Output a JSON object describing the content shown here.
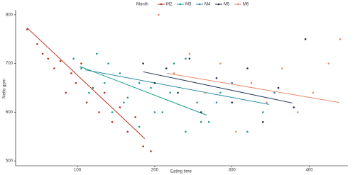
{
  "chart_data": {
    "type": "scatter",
    "legend_title": "Month",
    "xlabel": "Eating time",
    "ylabel": "Netto gpm",
    "xlim": [
      20,
      450
    ],
    "xticks": [
      100,
      200,
      300,
      400
    ],
    "ylim": [
      490,
      810
    ],
    "yticks": [
      500,
      600,
      700,
      800
    ],
    "legend_position": "top",
    "grid": false,
    "series": [
      {
        "name": "M2",
        "color": "#b5321e",
        "x": [
          35,
          48,
          55,
          62,
          70,
          78,
          85,
          92,
          98,
          105,
          112,
          120,
          128,
          135,
          145,
          155,
          165,
          175,
          185,
          195
        ],
        "values": [
          770,
          740,
          720,
          710,
          690,
          705,
          640,
          680,
          660,
          700,
          620,
          650,
          600,
          640,
          580,
          610,
          560,
          590,
          530,
          520
        ],
        "trend": {
          "x": [
            35,
            187
          ],
          "values": [
            773,
            546
          ]
        }
      },
      {
        "name": "M3",
        "color": "#16a08a",
        "x": [
          95,
          105,
          115,
          125,
          135,
          145,
          155,
          165,
          180,
          195,
          210,
          225,
          240,
          255,
          270,
          285
        ],
        "values": [
          710,
          690,
          640,
          720,
          660,
          600,
          680,
          630,
          570,
          650,
          600,
          700,
          560,
          620,
          580,
          640
        ],
        "trend": {
          "x": [
            103,
            267
          ],
          "values": [
            694,
            594
          ]
        }
      },
      {
        "name": "M4",
        "color": "#2a8ca8",
        "x": [
          105,
          120,
          140,
          160,
          180,
          200,
          220,
          240,
          260,
          280,
          300,
          320,
          340,
          355
        ],
        "values": [
          690,
          650,
          700,
          620,
          660,
          600,
          640,
          710,
          580,
          620,
          660,
          560,
          600,
          640
        ],
        "trend": {
          "x": [
            110,
            348
          ],
          "values": [
            687,
            616
          ]
        }
      },
      {
        "name": "M5",
        "color": "#1f2d4e",
        "x": [
          185,
          200,
          215,
          230,
          245,
          260,
          280,
          300,
          320,
          340,
          360,
          380,
          395
        ],
        "values": [
          700,
          660,
          690,
          640,
          710,
          600,
          670,
          620,
          690,
          580,
          650,
          610,
          750
        ],
        "trend": {
          "x": [
            185,
            378
          ],
          "values": [
            683,
            619
          ]
        }
      },
      {
        "name": "M6",
        "color": "#e8896b",
        "x": [
          205,
          225,
          245,
          265,
          285,
          305,
          325,
          345,
          365,
          385,
          405,
          425,
          440
        ],
        "values": [
          800,
          680,
          720,
          640,
          700,
          560,
          660,
          620,
          690,
          600,
          640,
          700,
          750
        ],
        "trend": {
          "x": [
            216,
            439
          ],
          "values": [
            680,
            620
          ]
        }
      }
    ]
  }
}
